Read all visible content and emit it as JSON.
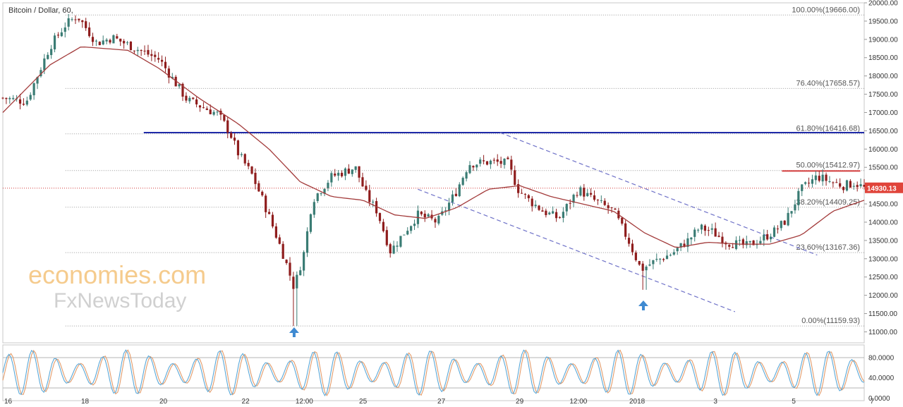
{
  "chart_title": "Bitcoin / Dollar, 60,",
  "watermark": {
    "line1": "economies.com",
    "line2": "FxNewsToday"
  },
  "colors": {
    "up": "#3a7c74",
    "down": "#8f1d1d",
    "ma": "#a33b3b",
    "resistance": "#1f2aa8",
    "price_line": "#d33b3b",
    "channel": "#6f72c8",
    "arrow": "#3f8ad1",
    "stoch_k": "#5aa8d8",
    "stoch_d": "#e39b6a"
  },
  "chart_data": [
    {
      "type": "candlestick",
      "title": "Bitcoin / Dollar, 60,",
      "ylim": [
        10700,
        20000
      ],
      "yticks": [
        "11000.00",
        "11500.00",
        "12000.00",
        "12500.00",
        "13000.00",
        "13500.00",
        "14000.00",
        "14500.00",
        "15000.00",
        "15500.00",
        "16000.00",
        "16500.00",
        "17000.00",
        "17500.00",
        "18000.00",
        "18500.00",
        "19000.00",
        "19500.00",
        "20000.00"
      ],
      "xlabels": [
        "16",
        "18",
        "20",
        "22",
        "12:00",
        "25",
        "27",
        "29",
        "12:00",
        "2018",
        "3",
        "5",
        "7"
      ],
      "last_price": 14930.13,
      "last_price_label": "14930.13",
      "fib_levels": [
        {
          "label": "100.00%(19666.00)",
          "value": 19666.0
        },
        {
          "label": "76.40%(17658.57)",
          "value": 17658.57
        },
        {
          "label": "61.80%(16416.68)",
          "value": 16416.68
        },
        {
          "label": "50.00%(15412.97)",
          "value": 15412.97
        },
        {
          "label": "38.20%(14409.25)",
          "value": 14409.25
        },
        {
          "label": "23.60%(13167.36)",
          "value": 13167.36
        },
        {
          "label": "0.00%(11159.93)",
          "value": 11159.93
        }
      ],
      "resistance_level": 16450,
      "price_keypoints": [
        [
          0,
          17400
        ],
        [
          0.03,
          17300
        ],
        [
          0.06,
          18800
        ],
        [
          0.08,
          19400
        ],
        [
          0.095,
          19650
        ],
        [
          0.12,
          18900
        ],
        [
          0.14,
          19050
        ],
        [
          0.17,
          18750
        ],
        [
          0.2,
          18450
        ],
        [
          0.235,
          17350
        ],
        [
          0.26,
          17100
        ],
        [
          0.275,
          16950
        ],
        [
          0.29,
          16450
        ],
        [
          0.3,
          15900
        ],
        [
          0.318,
          15300
        ],
        [
          0.332,
          14600
        ],
        [
          0.348,
          13700
        ],
        [
          0.36,
          13000
        ],
        [
          0.372,
          12200
        ],
        [
          0.385,
          13200
        ],
        [
          0.395,
          14600
        ],
        [
          0.42,
          15250
        ],
        [
          0.45,
          15500
        ],
        [
          0.465,
          14700
        ],
        [
          0.478,
          14300
        ],
        [
          0.495,
          13200
        ],
        [
          0.512,
          13700
        ],
        [
          0.53,
          14200
        ],
        [
          0.555,
          14000
        ],
        [
          0.578,
          14800
        ],
        [
          0.595,
          15600
        ],
        [
          0.625,
          15650
        ],
        [
          0.645,
          15600
        ],
        [
          0.658,
          14900
        ],
        [
          0.672,
          14600
        ],
        [
          0.69,
          14300
        ],
        [
          0.71,
          14100
        ],
        [
          0.735,
          14900
        ],
        [
          0.755,
          14600
        ],
        [
          0.78,
          14300
        ],
        [
          0.8,
          13450
        ],
        [
          0.815,
          12700
        ],
        [
          0.83,
          12900
        ],
        [
          0.855,
          13150
        ],
        [
          0.875,
          13500
        ],
        [
          0.89,
          13850
        ],
        [
          0.905,
          13750
        ],
        [
          0.925,
          13450
        ],
        [
          0.95,
          13350
        ],
        [
          0.97,
          13550
        ],
        [
          0.985,
          13750
        ],
        [
          1.0,
          14050
        ],
        [
          1.02,
          14900
        ],
        [
          1.04,
          15250
        ],
        [
          1.058,
          15100
        ],
        [
          1.074,
          15000
        ],
        [
          1.088,
          15080
        ],
        [
          1.1,
          14930
        ]
      ],
      "moving_average_keypoints": [
        [
          0,
          17000
        ],
        [
          0.06,
          18300
        ],
        [
          0.1,
          18800
        ],
        [
          0.16,
          18700
        ],
        [
          0.2,
          18200
        ],
        [
          0.25,
          17400
        ],
        [
          0.3,
          16700
        ],
        [
          0.34,
          16000
        ],
        [
          0.38,
          15100
        ],
        [
          0.42,
          14700
        ],
        [
          0.46,
          14600
        ],
        [
          0.5,
          14200
        ],
        [
          0.54,
          14100
        ],
        [
          0.58,
          14400
        ],
        [
          0.62,
          14900
        ],
        [
          0.66,
          15000
        ],
        [
          0.7,
          14700
        ],
        [
          0.74,
          14500
        ],
        [
          0.78,
          14300
        ],
        [
          0.82,
          13700
        ],
        [
          0.86,
          13300
        ],
        [
          0.9,
          13450
        ],
        [
          0.94,
          13400
        ],
        [
          0.98,
          13400
        ],
        [
          1.02,
          13650
        ],
        [
          1.06,
          14300
        ],
        [
          1.1,
          14600
        ]
      ],
      "channel_upper": [
        [
          0.635,
          16450
        ],
        [
          1.04,
          13100
        ]
      ],
      "channel_lower": [
        [
          0.53,
          14900
        ],
        [
          0.935,
          11550
        ]
      ],
      "red_resistance": {
        "from": 0.995,
        "to": 1.095,
        "value": 15400
      },
      "arrows": [
        {
          "x": 0.372,
          "label": "↑"
        },
        {
          "x": 0.818,
          "label": "↑"
        }
      ]
    },
    {
      "type": "line",
      "title": "",
      "name": "stochastic",
      "ylim": [
        -5,
        105
      ],
      "yticks": [
        "80.0000",
        "40.0000",
        "0.0000"
      ],
      "levels": [
        80,
        20
      ]
    }
  ]
}
